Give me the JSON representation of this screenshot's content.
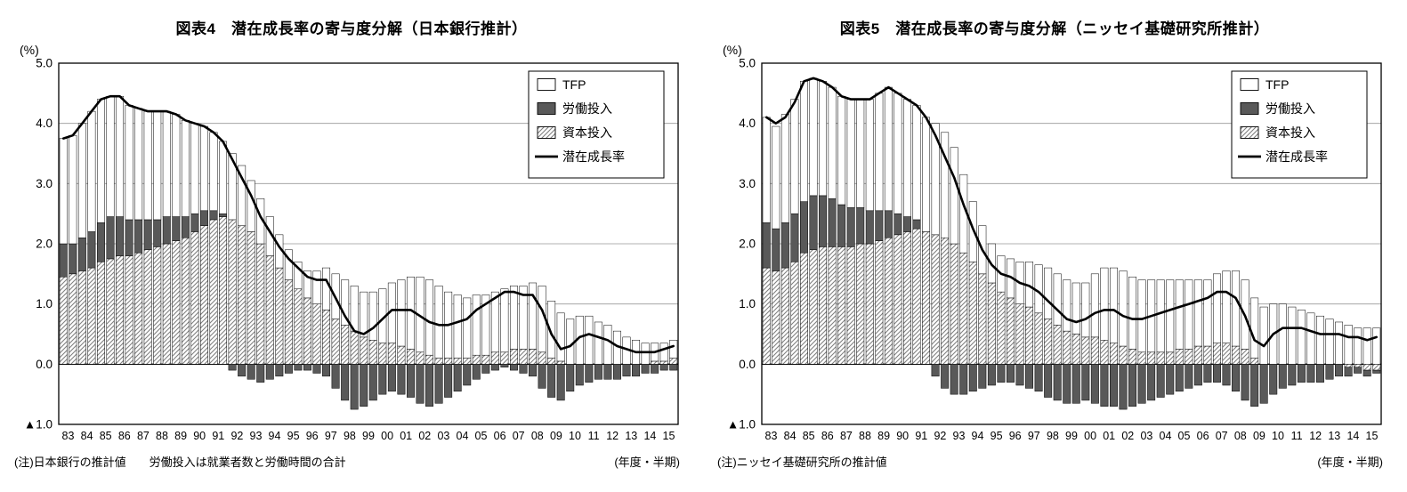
{
  "chart_data": [
    {
      "id": "boj",
      "type": "bar",
      "subtype": "stacked-bars-with-line",
      "title": "図表4　潜在成長率の寄与度分解（日本銀行推計）",
      "note": "(注)日本銀行の推計値　　労働投入は就業者数と労働時間の合計",
      "x_axis_label": "(年度・半期)",
      "y_unit_label": "(%)",
      "ylim": [
        -1.0,
        5.0
      ],
      "grid": true,
      "legend_position": "top-right-inside",
      "y_tick_labels": [
        "5.0",
        "4.0",
        "3.0",
        "2.0",
        "1.0",
        "0.0",
        "▲1.0"
      ],
      "x_year_labels": [
        "83",
        "84",
        "85",
        "86",
        "87",
        "88",
        "89",
        "90",
        "91",
        "92",
        "93",
        "94",
        "95",
        "96",
        "97",
        "98",
        "99",
        "00",
        "01",
        "02",
        "03",
        "04",
        "05",
        "06",
        "07",
        "08",
        "09",
        "10",
        "11",
        "12",
        "13",
        "14",
        "15"
      ],
      "periods_per_year": 2,
      "colors": {
        "bar_outline": "#000000",
        "labor_fill": "#595959",
        "hatch_stroke": "#808080",
        "line": "#000000"
      },
      "legend": [
        {
          "label": "TFP",
          "style": "white"
        },
        {
          "label": "労働投入",
          "style": "dark"
        },
        {
          "label": "資本投入",
          "style": "hatch"
        },
        {
          "label": "潜在成長率",
          "style": "line"
        }
      ],
      "series": [
        {
          "key": "capital",
          "name": "資本投入",
          "type": "bar",
          "style": "hatch",
          "values": [
            1.45,
            1.5,
            1.55,
            1.6,
            1.7,
            1.75,
            1.8,
            1.8,
            1.85,
            1.9,
            1.95,
            2.0,
            2.05,
            2.1,
            2.2,
            2.3,
            2.4,
            2.45,
            2.4,
            2.3,
            2.2,
            2.0,
            1.8,
            1.6,
            1.4,
            1.25,
            1.1,
            1.0,
            0.9,
            0.75,
            0.65,
            0.55,
            0.45,
            0.4,
            0.35,
            0.35,
            0.3,
            0.25,
            0.2,
            0.15,
            0.1,
            0.1,
            0.1,
            0.1,
            0.15,
            0.15,
            0.2,
            0.2,
            0.25,
            0.25,
            0.25,
            0.2,
            0.1,
            0.05,
            0.0,
            0.0,
            0.0,
            0.0,
            0.0,
            0.0,
            0.0,
            0.0,
            0.0,
            0.05,
            0.05,
            0.1
          ]
        },
        {
          "key": "labor",
          "name": "労働投入",
          "type": "bar",
          "style": "dark",
          "values": [
            0.55,
            0.5,
            0.55,
            0.6,
            0.65,
            0.7,
            0.65,
            0.6,
            0.55,
            0.5,
            0.45,
            0.45,
            0.4,
            0.35,
            0.3,
            0.25,
            0.15,
            0.05,
            -0.1,
            -0.2,
            -0.25,
            -0.3,
            -0.25,
            -0.2,
            -0.15,
            -0.1,
            -0.1,
            -0.15,
            -0.2,
            -0.4,
            -0.6,
            -0.75,
            -0.7,
            -0.6,
            -0.5,
            -0.45,
            -0.5,
            -0.55,
            -0.65,
            -0.7,
            -0.65,
            -0.55,
            -0.45,
            -0.35,
            -0.25,
            -0.15,
            -0.1,
            -0.05,
            -0.1,
            -0.15,
            -0.2,
            -0.4,
            -0.55,
            -0.6,
            -0.45,
            -0.35,
            -0.3,
            -0.25,
            -0.25,
            -0.25,
            -0.2,
            -0.2,
            -0.15,
            -0.15,
            -0.1,
            -0.1
          ]
        },
        {
          "key": "tfp",
          "name": "TFP",
          "type": "bar",
          "style": "white",
          "values": [
            1.75,
            1.8,
            1.9,
            2.0,
            2.05,
            2.0,
            2.0,
            1.9,
            1.85,
            1.8,
            1.8,
            1.75,
            1.7,
            1.6,
            1.5,
            1.4,
            1.3,
            1.2,
            1.1,
            1.0,
            0.85,
            0.75,
            0.65,
            0.55,
            0.5,
            0.45,
            0.45,
            0.55,
            0.7,
            0.75,
            0.75,
            0.75,
            0.75,
            0.8,
            0.9,
            1.0,
            1.1,
            1.2,
            1.25,
            1.25,
            1.2,
            1.1,
            1.05,
            1.0,
            1.0,
            1.0,
            1.0,
            1.05,
            1.05,
            1.05,
            1.1,
            1.1,
            0.95,
            0.8,
            0.75,
            0.8,
            0.8,
            0.7,
            0.65,
            0.55,
            0.45,
            0.4,
            0.35,
            0.3,
            0.3,
            0.3
          ]
        },
        {
          "key": "potential-growth",
          "name": "潜在成長率",
          "type": "line",
          "values": [
            3.75,
            3.8,
            4.0,
            4.2,
            4.4,
            4.45,
            4.45,
            4.3,
            4.25,
            4.2,
            4.2,
            4.2,
            4.15,
            4.05,
            4.0,
            3.95,
            3.85,
            3.7,
            3.4,
            3.1,
            2.8,
            2.45,
            2.2,
            1.95,
            1.75,
            1.6,
            1.45,
            1.4,
            1.4,
            1.1,
            0.8,
            0.55,
            0.5,
            0.6,
            0.75,
            0.9,
            0.9,
            0.9,
            0.8,
            0.7,
            0.65,
            0.65,
            0.7,
            0.75,
            0.9,
            1.0,
            1.1,
            1.2,
            1.2,
            1.15,
            1.15,
            0.9,
            0.5,
            0.25,
            0.3,
            0.45,
            0.5,
            0.45,
            0.4,
            0.3,
            0.25,
            0.2,
            0.2,
            0.2,
            0.25,
            0.3
          ]
        }
      ]
    },
    {
      "id": "nli",
      "type": "bar",
      "subtype": "stacked-bars-with-line",
      "title": "図表5　潜在成長率の寄与度分解（ニッセイ基礎研究所推計）",
      "note": "(注)ニッセイ基礎研究所の推計値",
      "x_axis_label": "(年度・半期)",
      "y_unit_label": "(%)",
      "ylim": [
        -1.0,
        5.0
      ],
      "grid": true,
      "legend_position": "top-right-inside",
      "y_tick_labels": [
        "5.0",
        "4.0",
        "3.0",
        "2.0",
        "1.0",
        "0.0",
        "▲1.0"
      ],
      "x_year_labels": [
        "83",
        "84",
        "85",
        "86",
        "87",
        "88",
        "89",
        "90",
        "91",
        "92",
        "93",
        "94",
        "95",
        "96",
        "97",
        "98",
        "99",
        "00",
        "01",
        "02",
        "03",
        "04",
        "05",
        "06",
        "07",
        "08",
        "09",
        "10",
        "11",
        "12",
        "13",
        "14",
        "15"
      ],
      "periods_per_year": 2,
      "colors": {
        "bar_outline": "#000000",
        "labor_fill": "#595959",
        "hatch_stroke": "#808080",
        "line": "#000000"
      },
      "legend": [
        {
          "label": "TFP",
          "style": "white"
        },
        {
          "label": "労働投入",
          "style": "dark"
        },
        {
          "label": "資本投入",
          "style": "hatch"
        },
        {
          "label": "潜在成長率",
          "style": "line"
        }
      ],
      "series": [
        {
          "key": "capital",
          "name": "資本投入",
          "type": "bar",
          "style": "hatch",
          "values": [
            1.6,
            1.55,
            1.6,
            1.7,
            1.85,
            1.9,
            1.95,
            1.95,
            1.95,
            1.95,
            2.0,
            2.0,
            2.05,
            2.1,
            2.15,
            2.2,
            2.25,
            2.2,
            2.15,
            2.1,
            2.0,
            1.85,
            1.7,
            1.5,
            1.35,
            1.2,
            1.1,
            1.0,
            0.95,
            0.85,
            0.75,
            0.65,
            0.55,
            0.5,
            0.45,
            0.45,
            0.4,
            0.35,
            0.3,
            0.25,
            0.2,
            0.2,
            0.2,
            0.2,
            0.25,
            0.25,
            0.3,
            0.3,
            0.35,
            0.35,
            0.3,
            0.25,
            0.1,
            0.0,
            0.0,
            0.0,
            0.0,
            0.0,
            0.0,
            0.0,
            0.0,
            0.0,
            -0.05,
            -0.05,
            -0.1,
            -0.1
          ]
        },
        {
          "key": "labor",
          "name": "労働投入",
          "type": "bar",
          "style": "dark",
          "values": [
            0.75,
            0.7,
            0.75,
            0.8,
            0.85,
            0.9,
            0.85,
            0.8,
            0.7,
            0.65,
            0.6,
            0.55,
            0.5,
            0.45,
            0.35,
            0.25,
            0.15,
            0.0,
            -0.2,
            -0.4,
            -0.5,
            -0.5,
            -0.45,
            -0.4,
            -0.35,
            -0.3,
            -0.3,
            -0.35,
            -0.4,
            -0.45,
            -0.55,
            -0.6,
            -0.65,
            -0.65,
            -0.6,
            -0.65,
            -0.7,
            -0.7,
            -0.75,
            -0.7,
            -0.65,
            -0.6,
            -0.55,
            -0.5,
            -0.45,
            -0.4,
            -0.35,
            -0.3,
            -0.3,
            -0.35,
            -0.45,
            -0.6,
            -0.7,
            -0.65,
            -0.5,
            -0.4,
            -0.35,
            -0.3,
            -0.3,
            -0.3,
            -0.25,
            -0.2,
            -0.15,
            -0.1,
            -0.1,
            -0.05
          ]
        },
        {
          "key": "tfp",
          "name": "TFP",
          "type": "bar",
          "style": "white",
          "values": [
            1.75,
            1.7,
            1.8,
            1.9,
            2.0,
            1.95,
            1.9,
            1.85,
            1.8,
            1.8,
            1.8,
            1.85,
            1.95,
            2.05,
            2.0,
            1.95,
            1.9,
            1.9,
            1.85,
            1.75,
            1.6,
            1.3,
            1.0,
            0.8,
            0.65,
            0.6,
            0.65,
            0.7,
            0.75,
            0.8,
            0.85,
            0.85,
            0.85,
            0.85,
            0.9,
            1.05,
            1.2,
            1.25,
            1.25,
            1.2,
            1.2,
            1.2,
            1.2,
            1.2,
            1.15,
            1.15,
            1.1,
            1.1,
            1.15,
            1.2,
            1.25,
            1.15,
            1.0,
            0.95,
            1.0,
            1.0,
            0.95,
            0.9,
            0.85,
            0.8,
            0.75,
            0.7,
            0.65,
            0.6,
            0.6,
            0.6
          ]
        },
        {
          "key": "potential-growth",
          "name": "潜在成長率",
          "type": "line",
          "values": [
            4.1,
            4.0,
            4.1,
            4.35,
            4.7,
            4.75,
            4.7,
            4.6,
            4.45,
            4.4,
            4.4,
            4.4,
            4.5,
            4.6,
            4.5,
            4.4,
            4.3,
            4.1,
            3.8,
            3.45,
            3.1,
            2.65,
            2.25,
            1.9,
            1.65,
            1.5,
            1.45,
            1.35,
            1.3,
            1.2,
            1.05,
            0.9,
            0.75,
            0.7,
            0.75,
            0.85,
            0.9,
            0.9,
            0.8,
            0.75,
            0.75,
            0.8,
            0.85,
            0.9,
            0.95,
            1.0,
            1.05,
            1.1,
            1.2,
            1.2,
            1.1,
            0.8,
            0.4,
            0.3,
            0.5,
            0.6,
            0.6,
            0.6,
            0.55,
            0.5,
            0.5,
            0.5,
            0.45,
            0.45,
            0.4,
            0.45
          ]
        }
      ]
    }
  ]
}
